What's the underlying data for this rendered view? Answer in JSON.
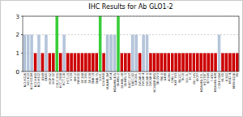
{
  "chart_data": {
    "type": "bar",
    "title": "IHC Results for Ab GLO1-2",
    "categories": [
      "NCI-H226",
      "NCI-H23",
      "NCI-H322M",
      "NCI-H460",
      "NCI-H522",
      "A549",
      "EKVX",
      "HOP-62",
      "HOP-92",
      "COLO 205",
      "HCC-2998",
      "HCT-116",
      "HCT-15",
      "HT29",
      "KM12",
      "SW-620",
      "SF-268",
      "SF-295",
      "SF-539",
      "SNB-19",
      "SNB-75",
      "U251",
      "LOX IMVI",
      "MALME-3M",
      "M14",
      "MDA-MB-435",
      "SK-MEL-2",
      "SK-MEL-28",
      "SK-MEL-5",
      "UACC-257",
      "UACC-62",
      "IGR-OV1",
      "OVCAR-3",
      "OVCAR-4",
      "OVCAR-5",
      "OVCAR-8",
      "NCI/ADR-RES",
      "SK-OV-3",
      "786-0",
      "A498",
      "ACHN",
      "CAKI-1",
      "RXF 393",
      "SN12C",
      "TK-10",
      "UO-31",
      "PC-3",
      "DU-145",
      "MCF7",
      "MDA-MB-231",
      "HS 578T",
      "BT-549",
      "T-47D",
      "MDA-MB-468",
      "CCRF-CEM",
      "HL-60",
      "K-562",
      "MOLT-4",
      "RPMI-8226",
      "SR"
    ],
    "values": [
      2,
      2,
      2,
      1,
      2,
      1,
      2,
      1,
      1,
      3,
      1,
      2,
      1,
      1,
      1,
      1,
      1,
      1,
      1,
      1,
      1,
      3,
      1,
      2,
      2,
      2,
      3,
      1,
      1,
      1,
      2,
      2,
      1,
      2,
      2,
      1,
      1,
      1,
      1,
      1,
      1,
      1,
      1,
      1,
      1,
      1,
      1,
      1,
      1,
      1,
      1,
      1,
      1,
      1,
      2,
      1,
      1,
      1,
      1,
      1
    ],
    "colors": [
      "#b3c3d9",
      "#b3c3d9",
      "#b3c3d9",
      "#cc0000",
      "#b3c3d9",
      "#cc0000",
      "#b3c3d9",
      "#cc0000",
      "#cc0000",
      "#33cc33",
      "#cc0000",
      "#b3c3d9",
      "#cc0000",
      "#cc0000",
      "#cc0000",
      "#cc0000",
      "#cc0000",
      "#cc0000",
      "#cc0000",
      "#cc0000",
      "#cc0000",
      "#33cc33",
      "#cc0000",
      "#b3c3d9",
      "#b3c3d9",
      "#b3c3d9",
      "#33cc33",
      "#cc0000",
      "#cc0000",
      "#cc0000",
      "#b3c3d9",
      "#b3c3d9",
      "#cc0000",
      "#b3c3d9",
      "#b3c3d9",
      "#cc0000",
      "#cc0000",
      "#cc0000",
      "#cc0000",
      "#cc0000",
      "#cc0000",
      "#cc0000",
      "#cc0000",
      "#cc0000",
      "#cc0000",
      "#cc0000",
      "#cc0000",
      "#cc0000",
      "#cc0000",
      "#cc0000",
      "#cc0000",
      "#cc0000",
      "#cc0000",
      "#cc0000",
      "#b3c3d9",
      "#cc0000",
      "#cc0000",
      "#cc0000",
      "#cc0000",
      "#cc0000"
    ],
    "ylim": [
      0,
      3
    ],
    "yticks": [
      0,
      1,
      2,
      3
    ],
    "grid": true
  }
}
